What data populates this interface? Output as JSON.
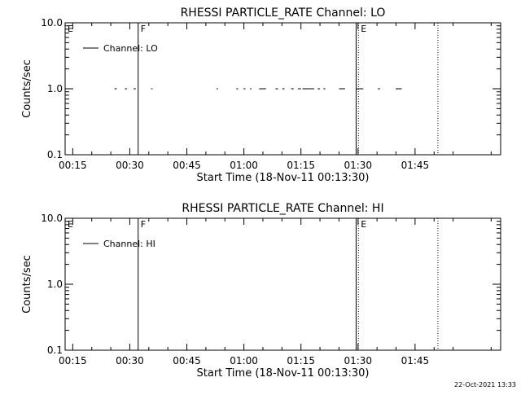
{
  "footer_timestamp": "22-Oct-2021 13:33",
  "chart_data": [
    {
      "type": "line",
      "title": "RHESSI PARTICLE_RATE Channel: LO",
      "xlabel": "Start Time (18-Nov-11 00:13:30)",
      "ylabel": "Counts/sec",
      "y_scale": "log",
      "ylim": [
        0.1,
        10.0
      ],
      "xlim_minutes": [
        13.0,
        127.5
      ],
      "x_ticks": [
        {
          "label": "00:15",
          "minutes": 15
        },
        {
          "label": "00:30",
          "minutes": 30
        },
        {
          "label": "00:45",
          "minutes": 45
        },
        {
          "label": "01:00",
          "minutes": 60
        },
        {
          "label": "01:15",
          "minutes": 75
        },
        {
          "label": "01:30",
          "minutes": 90
        },
        {
          "label": "01:45",
          "minutes": 105
        }
      ],
      "y_ticks": [
        {
          "label": "0.1",
          "value": 0.1
        },
        {
          "label": "1.0",
          "value": 1.0
        },
        {
          "label": "10.0",
          "value": 10.0
        }
      ],
      "legend": {
        "label": "Channel: LO",
        "placement": "top-left"
      },
      "markers": [
        {
          "label": "E",
          "minutes": 13.0,
          "style": "none"
        },
        {
          "label": "F",
          "minutes": 32.2,
          "style": "solid"
        },
        {
          "label": "E",
          "minutes": 90.1,
          "style": "dotted"
        },
        {
          "label": "",
          "minutes": 89.5,
          "style": "solid"
        },
        {
          "label": "",
          "minutes": 111.0,
          "style": "dotted"
        }
      ],
      "series": [
        {
          "value": 1.0,
          "segments_minutes": [
            [
              26.0,
              26.6
            ],
            [
              28.7,
              29.3
            ],
            [
              31.0,
              31.6
            ],
            [
              35.6,
              36.0
            ],
            [
              52.8,
              53.2
            ],
            [
              58.0,
              58.5
            ],
            [
              59.9,
              60.4
            ],
            [
              61.6,
              62.0
            ],
            [
              64.0,
              65.8
            ],
            [
              68.3,
              69.0
            ],
            [
              70.1,
              70.7
            ],
            [
              72.4,
              73.1
            ],
            [
              74.2,
              75.0
            ],
            [
              75.4,
              78.5
            ],
            [
              79.4,
              80.0
            ],
            [
              80.9,
              81.4
            ],
            [
              85.0,
              86.6
            ],
            [
              89.6,
              91.4
            ],
            [
              95.2,
              95.8
            ],
            [
              99.9,
              101.5
            ]
          ]
        }
      ]
    },
    {
      "type": "line",
      "title": "RHESSI PARTICLE_RATE Channel: HI",
      "xlabel": "Start Time (18-Nov-11 00:13:30)",
      "ylabel": "Counts/sec",
      "y_scale": "log",
      "ylim": [
        0.1,
        10.0
      ],
      "xlim_minutes": [
        13.0,
        127.5
      ],
      "x_ticks": [
        {
          "label": "00:15",
          "minutes": 15
        },
        {
          "label": "00:30",
          "minutes": 30
        },
        {
          "label": "00:45",
          "minutes": 45
        },
        {
          "label": "01:00",
          "minutes": 60
        },
        {
          "label": "01:15",
          "minutes": 75
        },
        {
          "label": "01:30",
          "minutes": 90
        },
        {
          "label": "01:45",
          "minutes": 105
        }
      ],
      "y_ticks": [
        {
          "label": "0.1",
          "value": 0.1
        },
        {
          "label": "1.0",
          "value": 1.0
        },
        {
          "label": "10.0",
          "value": 10.0
        }
      ],
      "legend": {
        "label": "Channel: HI",
        "placement": "top-left"
      },
      "markers": [
        {
          "label": "E",
          "minutes": 13.0,
          "style": "none"
        },
        {
          "label": "F",
          "minutes": 32.2,
          "style": "solid"
        },
        {
          "label": "E",
          "minutes": 90.1,
          "style": "dotted"
        },
        {
          "label": "",
          "minutes": 89.5,
          "style": "solid"
        },
        {
          "label": "",
          "minutes": 111.0,
          "style": "dotted"
        }
      ],
      "series": [
        {
          "value": 1.0,
          "segments_minutes": []
        }
      ]
    }
  ]
}
